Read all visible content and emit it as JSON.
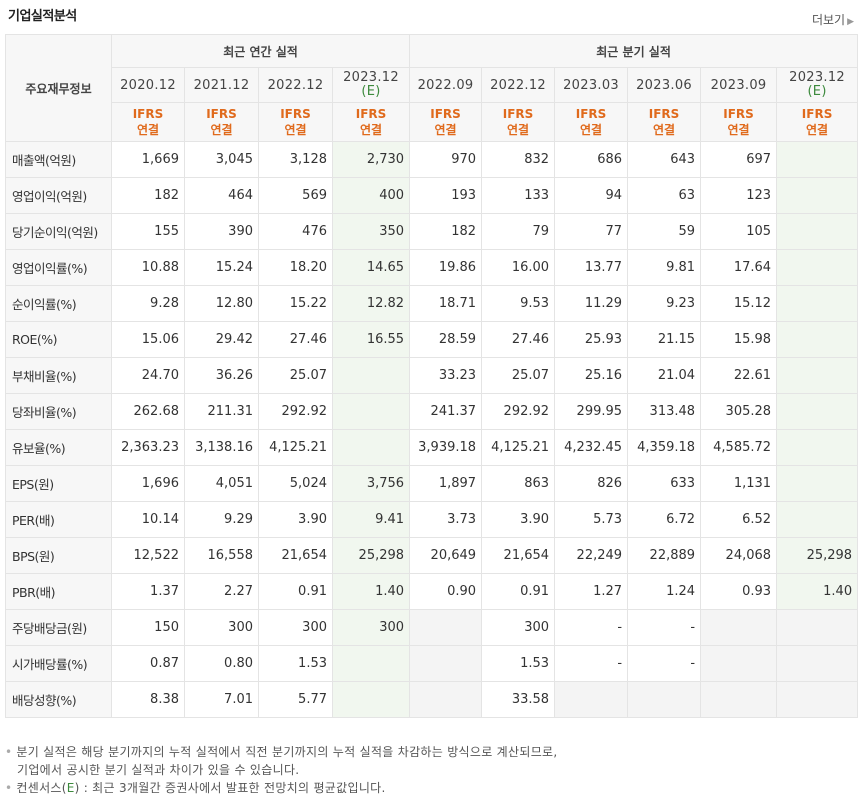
{
  "header": {
    "title": "기업실적분석",
    "more_label": "더보기"
  },
  "table": {
    "corner_label": "주요재무정보",
    "group_annual": "최근 연간 실적",
    "group_quarter": "최근 분기 실적",
    "periods": [
      "2020.12",
      "2021.12",
      "2022.12",
      "2023.12",
      "2022.09",
      "2022.12",
      "2023.03",
      "2023.06",
      "2023.09",
      "2023.12"
    ],
    "estimate_mark": "(E)",
    "ifrs_top": "IFRS",
    "ifrs_bottom": "연결",
    "rows": [
      {
        "label": "매출액(억원)",
        "values": [
          "1,669",
          "3,045",
          "3,128",
          "2,730",
          "970",
          "832",
          "686",
          "643",
          "697",
          ""
        ]
      },
      {
        "label": "영업이익(억원)",
        "values": [
          "182",
          "464",
          "569",
          "400",
          "193",
          "133",
          "94",
          "63",
          "123",
          ""
        ]
      },
      {
        "label": "당기순이익(억원)",
        "values": [
          "155",
          "390",
          "476",
          "350",
          "182",
          "79",
          "77",
          "59",
          "105",
          ""
        ]
      },
      {
        "label": "영업이익률(%)",
        "values": [
          "10.88",
          "15.24",
          "18.20",
          "14.65",
          "19.86",
          "16.00",
          "13.77",
          "9.81",
          "17.64",
          ""
        ]
      },
      {
        "label": "순이익률(%)",
        "values": [
          "9.28",
          "12.80",
          "15.22",
          "12.82",
          "18.71",
          "9.53",
          "11.29",
          "9.23",
          "15.12",
          ""
        ]
      },
      {
        "label": "ROE(%)",
        "values": [
          "15.06",
          "29.42",
          "27.46",
          "16.55",
          "28.59",
          "27.46",
          "25.93",
          "21.15",
          "15.98",
          ""
        ]
      },
      {
        "label": "부채비율(%)",
        "values": [
          "24.70",
          "36.26",
          "25.07",
          "",
          "33.23",
          "25.07",
          "25.16",
          "21.04",
          "22.61",
          ""
        ]
      },
      {
        "label": "당좌비율(%)",
        "values": [
          "262.68",
          "211.31",
          "292.92",
          "",
          "241.37",
          "292.92",
          "299.95",
          "313.48",
          "305.28",
          ""
        ]
      },
      {
        "label": "유보율(%)",
        "values": [
          "2,363.23",
          "3,138.16",
          "4,125.21",
          "",
          "3,939.18",
          "4,125.21",
          "4,232.45",
          "4,359.18",
          "4,585.72",
          ""
        ]
      },
      {
        "label": "EPS(원)",
        "values": [
          "1,696",
          "4,051",
          "5,024",
          "3,756",
          "1,897",
          "863",
          "826",
          "633",
          "1,131",
          ""
        ]
      },
      {
        "label": "PER(배)",
        "values": [
          "10.14",
          "9.29",
          "3.90",
          "9.41",
          "3.73",
          "3.90",
          "5.73",
          "6.72",
          "6.52",
          ""
        ]
      },
      {
        "label": "BPS(원)",
        "values": [
          "12,522",
          "16,558",
          "21,654",
          "25,298",
          "20,649",
          "21,654",
          "22,249",
          "22,889",
          "24,068",
          "25,298"
        ]
      },
      {
        "label": "PBR(배)",
        "values": [
          "1.37",
          "2.27",
          "0.91",
          "1.40",
          "0.90",
          "0.91",
          "1.27",
          "1.24",
          "0.93",
          "1.40"
        ]
      },
      {
        "label": "주당배당금(원)",
        "values": [
          "150",
          "300",
          "300",
          "300",
          "",
          "300",
          "-",
          "-",
          "",
          ""
        ]
      },
      {
        "label": "시가배당률(%)",
        "values": [
          "0.87",
          "0.80",
          "1.53",
          "",
          "",
          "1.53",
          "-",
          "-",
          "",
          ""
        ]
      },
      {
        "label": "배당성향(%)",
        "values": [
          "8.38",
          "7.01",
          "5.77",
          "",
          "",
          "33.58",
          "",
          "",
          "",
          ""
        ]
      }
    ]
  },
  "notes": {
    "line1": "분기 실적은 해당 분기까지의 누적 실적에서 직전 분기까지의 누적 실적을 차감하는 방식으로 계산되므로,",
    "line2": "기업에서 공시한 분기 실적과 차이가 있을 수 있습니다.",
    "line3_a": "컨센서스(",
    "line3_e": "E",
    "line3_b": ") : 최근 3개월간 증권사에서 발표한 전망치의 평균값입니다."
  }
}
